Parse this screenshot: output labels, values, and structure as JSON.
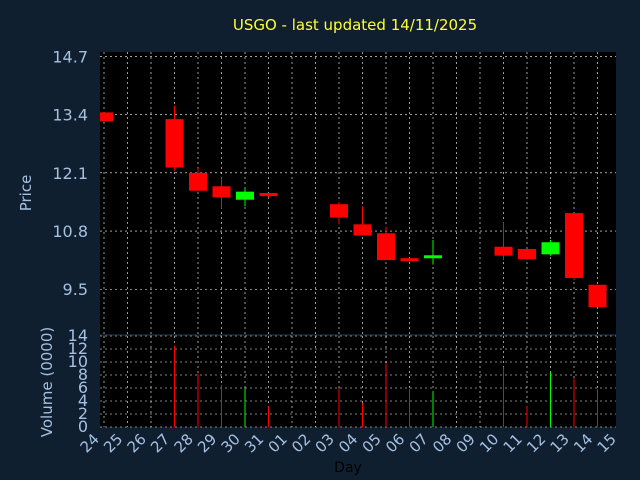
{
  "title": "USGO - last updated 14/11/2025",
  "colors": {
    "background": "#0f1f30",
    "plot": "#000000",
    "grid": "#ffffff",
    "up": "#00ff00",
    "down": "#ff0000",
    "title": "#ffff33",
    "tick": "#a6c0df"
  },
  "chart_data": [
    {
      "type": "candlestick",
      "ylabel": "Price",
      "ylim": [
        8.5,
        14.8
      ],
      "yticks": [
        "14.7",
        "13.4",
        "12.1",
        "10.8",
        "9.5"
      ],
      "ytick_values": [
        14.7,
        13.4,
        12.1,
        10.8,
        9.5
      ],
      "grid": true,
      "x": [
        "24",
        "25",
        "26",
        "27",
        "28",
        "29",
        "30",
        "31",
        "01",
        "02",
        "03",
        "04",
        "05",
        "06",
        "07",
        "08",
        "09",
        "10",
        "11",
        "12",
        "13",
        "14",
        "15"
      ],
      "candles": [
        {
          "x": "24",
          "open": 13.45,
          "close": 13.25,
          "high": 13.45,
          "low": 13.25
        },
        {
          "x": "27",
          "open": 13.3,
          "close": 12.22,
          "high": 13.6,
          "low": 12.15
        },
        {
          "x": "28",
          "open": 12.1,
          "close": 11.7,
          "high": 12.2,
          "low": 11.7
        },
        {
          "x": "29",
          "open": 11.8,
          "close": 11.55,
          "high": 12.0,
          "low": 11.3
        },
        {
          "x": "30",
          "open": 11.5,
          "close": 11.68,
          "high": 11.75,
          "low": 11.35
        },
        {
          "x": "31",
          "open": 11.65,
          "close": 11.58,
          "high": 11.65,
          "low": 11.55
        },
        {
          "x": "03",
          "open": 11.4,
          "close": 11.1,
          "high": 11.45,
          "low": 10.95
        },
        {
          "x": "04",
          "open": 10.95,
          "close": 10.7,
          "high": 11.35,
          "low": 10.7
        },
        {
          "x": "05",
          "open": 10.75,
          "close": 10.15,
          "high": 10.9,
          "low": 10.15
        },
        {
          "x": "06",
          "open": 10.18,
          "close": 10.14,
          "high": 10.2,
          "low": 10.12
        },
        {
          "x": "07",
          "open": 10.2,
          "close": 10.25,
          "high": 10.6,
          "low": 10.05
        },
        {
          "x": "10",
          "open": 10.45,
          "close": 10.25,
          "high": 11.0,
          "low": 10.15
        },
        {
          "x": "11",
          "open": 10.4,
          "close": 10.17,
          "high": 10.4,
          "low": 10.15
        },
        {
          "x": "12",
          "open": 10.28,
          "close": 10.55,
          "high": 10.6,
          "low": 10.25
        },
        {
          "x": "13",
          "open": 11.2,
          "close": 9.75,
          "high": 11.2,
          "low": 9.7
        },
        {
          "x": "14",
          "open": 9.6,
          "close": 9.1,
          "high": 9.6,
          "low": 9.1
        }
      ]
    },
    {
      "type": "bar",
      "ylabel": "Volume (0000)",
      "ylim": [
        0,
        14
      ],
      "yticks": [
        "14",
        "12",
        "10",
        "8",
        "6",
        "4",
        "2",
        "0"
      ],
      "ytick_values": [
        14,
        12,
        10,
        8,
        6,
        4,
        2,
        0
      ],
      "xlabel": "Day",
      "grid": true,
      "x": [
        "24",
        "25",
        "26",
        "27",
        "28",
        "29",
        "30",
        "31",
        "01",
        "02",
        "03",
        "04",
        "05",
        "06",
        "07",
        "08",
        "09",
        "10",
        "11",
        "12",
        "13",
        "14",
        "15"
      ],
      "bars": [
        {
          "x": "27",
          "value": 12.5,
          "up": false
        },
        {
          "x": "28",
          "value": 8.2,
          "up": false
        },
        {
          "x": "29",
          "value": 6.5,
          "up": false
        },
        {
          "x": "30",
          "value": 6.0,
          "up": true
        },
        {
          "x": "31",
          "value": 3.2,
          "up": false
        },
        {
          "x": "03",
          "value": 6.0,
          "up": false
        },
        {
          "x": "04",
          "value": 3.7,
          "up": false
        },
        {
          "x": "05",
          "value": 9.8,
          "up": false
        },
        {
          "x": "06",
          "value": 5.8,
          "up": false
        },
        {
          "x": "07",
          "value": 5.5,
          "up": true
        },
        {
          "x": "10",
          "value": 9.2,
          "up": false
        },
        {
          "x": "11",
          "value": 3.2,
          "up": false
        },
        {
          "x": "12",
          "value": 8.5,
          "up": true
        },
        {
          "x": "13",
          "value": 7.5,
          "up": false
        },
        {
          "x": "14",
          "value": 5.8,
          "up": false
        }
      ]
    }
  ]
}
